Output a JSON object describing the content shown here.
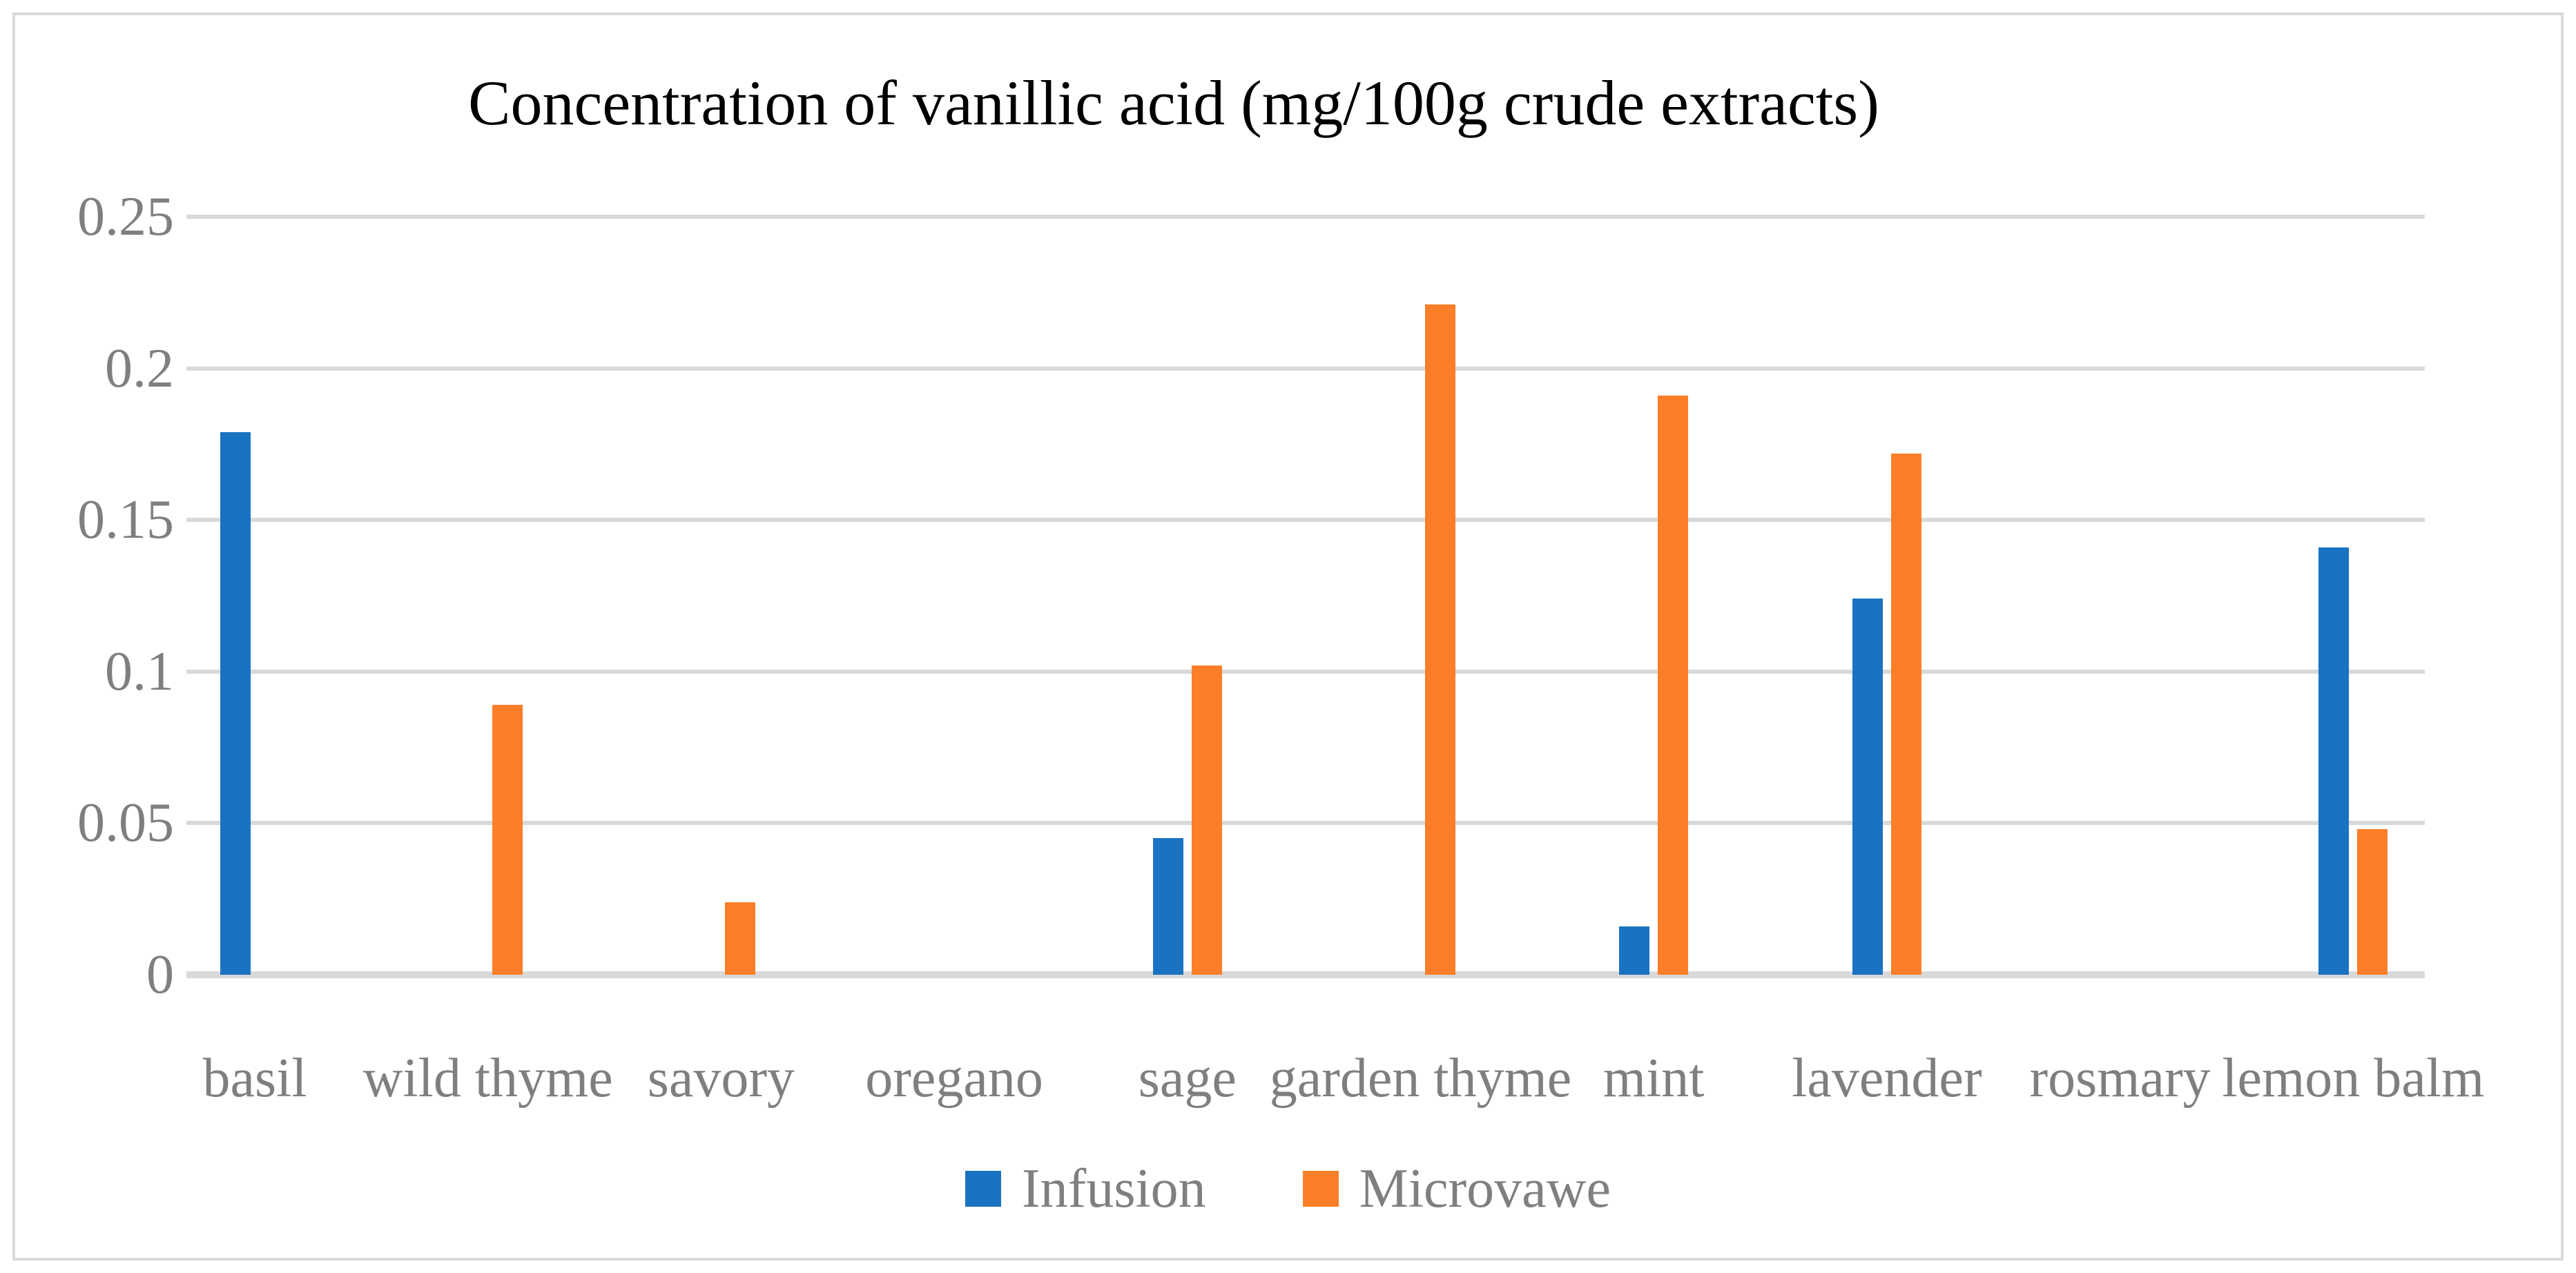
{
  "chart": {
    "title": "Concentration of vanillic acid (mg/100g crude extracts)"
  },
  "chart_data": {
    "type": "bar",
    "title": "Concentration of vanillic acid (mg/100g crude extracts)",
    "categories": [
      "basil",
      "wild thyme",
      "savory",
      "oregano",
      "sage",
      "garden thyme",
      "mint",
      "lavender",
      "rosmary",
      "lemon balm"
    ],
    "series": [
      {
        "name": "Infusion",
        "color": "#1A72C2",
        "values": [
          0.179,
          0,
          0,
          0,
          0.045,
          0,
          0.016,
          0.124,
          0,
          0.141
        ]
      },
      {
        "name": "Microvawe",
        "color": "#FC7E28",
        "values": [
          0,
          0.089,
          0.024,
          0,
          0.102,
          0.221,
          0.191,
          0.172,
          0,
          0.048
        ]
      }
    ],
    "xlabel": "",
    "ylabel": "",
    "ylim": [
      0,
      0.25
    ],
    "yticks": [
      {
        "value": 0,
        "label": "0"
      },
      {
        "value": 0.05,
        "label": "0.05"
      },
      {
        "value": 0.1,
        "label": "0.1"
      },
      {
        "value": 0.15,
        "label": "0.15"
      },
      {
        "value": 0.2,
        "label": "0.2"
      },
      {
        "value": 0.25,
        "label": "0.25"
      }
    ],
    "grid": true,
    "legend_position": "bottom",
    "legend": [
      "Infusion",
      "Microvawe"
    ]
  },
  "style": {
    "grid_color": "#D9D9D9",
    "baseline_color": "#D9D9D9",
    "axis_text_color": "#7F7F7F",
    "title_color": "#000000",
    "border_color": "#D9D9D9",
    "background": "#FFFFFF"
  }
}
